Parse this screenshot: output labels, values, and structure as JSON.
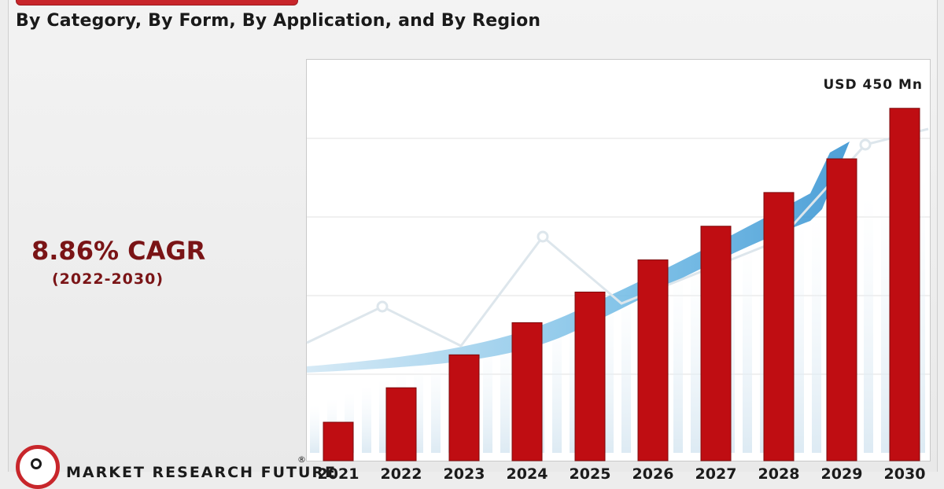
{
  "header": {
    "subtitle": "By Category, By Form, By Application, and By Region"
  },
  "cagr": {
    "value": "8.86% CAGR",
    "period": "(2022-2030)"
  },
  "brand": {
    "name": "MARKET RESEARCH FUTURE",
    "registered": "®"
  },
  "colors": {
    "bar": "#bf0d12",
    "bar_edge": "#7d0a0c",
    "accent": "#7a1416",
    "arrow": "#5aaee0"
  },
  "chart_data": {
    "type": "bar",
    "categories": [
      "2021",
      "2022",
      "2023",
      "2024",
      "2025",
      "2026",
      "2027",
      "2028",
      "2029",
      "2030"
    ],
    "values": [
      40,
      85,
      128,
      170,
      210,
      252,
      296,
      340,
      384,
      450
    ],
    "value_label": "USD 450 Mn",
    "ylim": [
      0,
      460
    ],
    "grid": true,
    "legend": "none"
  }
}
